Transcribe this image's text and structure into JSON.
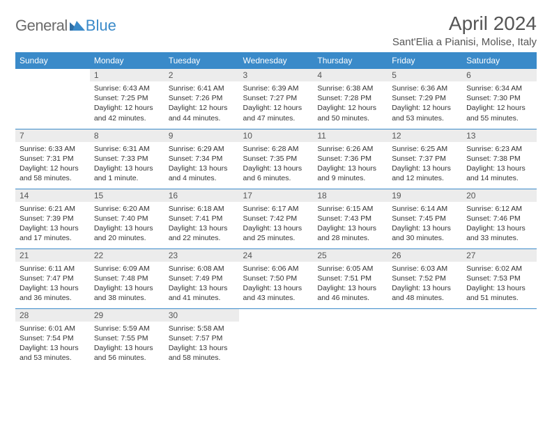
{
  "brand": {
    "name1": "General",
    "name2": "Blue"
  },
  "title": "April 2024",
  "location": "Sant'Elia a Pianisi, Molise, Italy",
  "colors": {
    "header_bg": "#3a8ac9",
    "header_fg": "#ffffff",
    "daynum_bg": "#ececec",
    "text": "#333333",
    "rule": "#3a8ac9",
    "logo_gray": "#6b6b6b",
    "logo_blue": "#3a8ac9"
  },
  "dayNames": [
    "Sunday",
    "Monday",
    "Tuesday",
    "Wednesday",
    "Thursday",
    "Friday",
    "Saturday"
  ],
  "weeks": [
    [
      {
        "n": "",
        "empty": true
      },
      {
        "n": "1",
        "sunrise": "6:43 AM",
        "sunset": "7:25 PM",
        "daylight": "12 hours and 42 minutes."
      },
      {
        "n": "2",
        "sunrise": "6:41 AM",
        "sunset": "7:26 PM",
        "daylight": "12 hours and 44 minutes."
      },
      {
        "n": "3",
        "sunrise": "6:39 AM",
        "sunset": "7:27 PM",
        "daylight": "12 hours and 47 minutes."
      },
      {
        "n": "4",
        "sunrise": "6:38 AM",
        "sunset": "7:28 PM",
        "daylight": "12 hours and 50 minutes."
      },
      {
        "n": "5",
        "sunrise": "6:36 AM",
        "sunset": "7:29 PM",
        "daylight": "12 hours and 53 minutes."
      },
      {
        "n": "6",
        "sunrise": "6:34 AM",
        "sunset": "7:30 PM",
        "daylight": "12 hours and 55 minutes."
      }
    ],
    [
      {
        "n": "7",
        "sunrise": "6:33 AM",
        "sunset": "7:31 PM",
        "daylight": "12 hours and 58 minutes."
      },
      {
        "n": "8",
        "sunrise": "6:31 AM",
        "sunset": "7:33 PM",
        "daylight": "13 hours and 1 minute."
      },
      {
        "n": "9",
        "sunrise": "6:29 AM",
        "sunset": "7:34 PM",
        "daylight": "13 hours and 4 minutes."
      },
      {
        "n": "10",
        "sunrise": "6:28 AM",
        "sunset": "7:35 PM",
        "daylight": "13 hours and 6 minutes."
      },
      {
        "n": "11",
        "sunrise": "6:26 AM",
        "sunset": "7:36 PM",
        "daylight": "13 hours and 9 minutes."
      },
      {
        "n": "12",
        "sunrise": "6:25 AM",
        "sunset": "7:37 PM",
        "daylight": "13 hours and 12 minutes."
      },
      {
        "n": "13",
        "sunrise": "6:23 AM",
        "sunset": "7:38 PM",
        "daylight": "13 hours and 14 minutes."
      }
    ],
    [
      {
        "n": "14",
        "sunrise": "6:21 AM",
        "sunset": "7:39 PM",
        "daylight": "13 hours and 17 minutes."
      },
      {
        "n": "15",
        "sunrise": "6:20 AM",
        "sunset": "7:40 PM",
        "daylight": "13 hours and 20 minutes."
      },
      {
        "n": "16",
        "sunrise": "6:18 AM",
        "sunset": "7:41 PM",
        "daylight": "13 hours and 22 minutes."
      },
      {
        "n": "17",
        "sunrise": "6:17 AM",
        "sunset": "7:42 PM",
        "daylight": "13 hours and 25 minutes."
      },
      {
        "n": "18",
        "sunrise": "6:15 AM",
        "sunset": "7:43 PM",
        "daylight": "13 hours and 28 minutes."
      },
      {
        "n": "19",
        "sunrise": "6:14 AM",
        "sunset": "7:45 PM",
        "daylight": "13 hours and 30 minutes."
      },
      {
        "n": "20",
        "sunrise": "6:12 AM",
        "sunset": "7:46 PM",
        "daylight": "13 hours and 33 minutes."
      }
    ],
    [
      {
        "n": "21",
        "sunrise": "6:11 AM",
        "sunset": "7:47 PM",
        "daylight": "13 hours and 36 minutes."
      },
      {
        "n": "22",
        "sunrise": "6:09 AM",
        "sunset": "7:48 PM",
        "daylight": "13 hours and 38 minutes."
      },
      {
        "n": "23",
        "sunrise": "6:08 AM",
        "sunset": "7:49 PM",
        "daylight": "13 hours and 41 minutes."
      },
      {
        "n": "24",
        "sunrise": "6:06 AM",
        "sunset": "7:50 PM",
        "daylight": "13 hours and 43 minutes."
      },
      {
        "n": "25",
        "sunrise": "6:05 AM",
        "sunset": "7:51 PM",
        "daylight": "13 hours and 46 minutes."
      },
      {
        "n": "26",
        "sunrise": "6:03 AM",
        "sunset": "7:52 PM",
        "daylight": "13 hours and 48 minutes."
      },
      {
        "n": "27",
        "sunrise": "6:02 AM",
        "sunset": "7:53 PM",
        "daylight": "13 hours and 51 minutes."
      }
    ],
    [
      {
        "n": "28",
        "sunrise": "6:01 AM",
        "sunset": "7:54 PM",
        "daylight": "13 hours and 53 minutes."
      },
      {
        "n": "29",
        "sunrise": "5:59 AM",
        "sunset": "7:55 PM",
        "daylight": "13 hours and 56 minutes."
      },
      {
        "n": "30",
        "sunrise": "5:58 AM",
        "sunset": "7:57 PM",
        "daylight": "13 hours and 58 minutes."
      },
      {
        "n": "",
        "empty": true
      },
      {
        "n": "",
        "empty": true
      },
      {
        "n": "",
        "empty": true
      },
      {
        "n": "",
        "empty": true
      }
    ]
  ],
  "labels": {
    "sunrise": "Sunrise:",
    "sunset": "Sunset:",
    "daylight": "Daylight:"
  }
}
